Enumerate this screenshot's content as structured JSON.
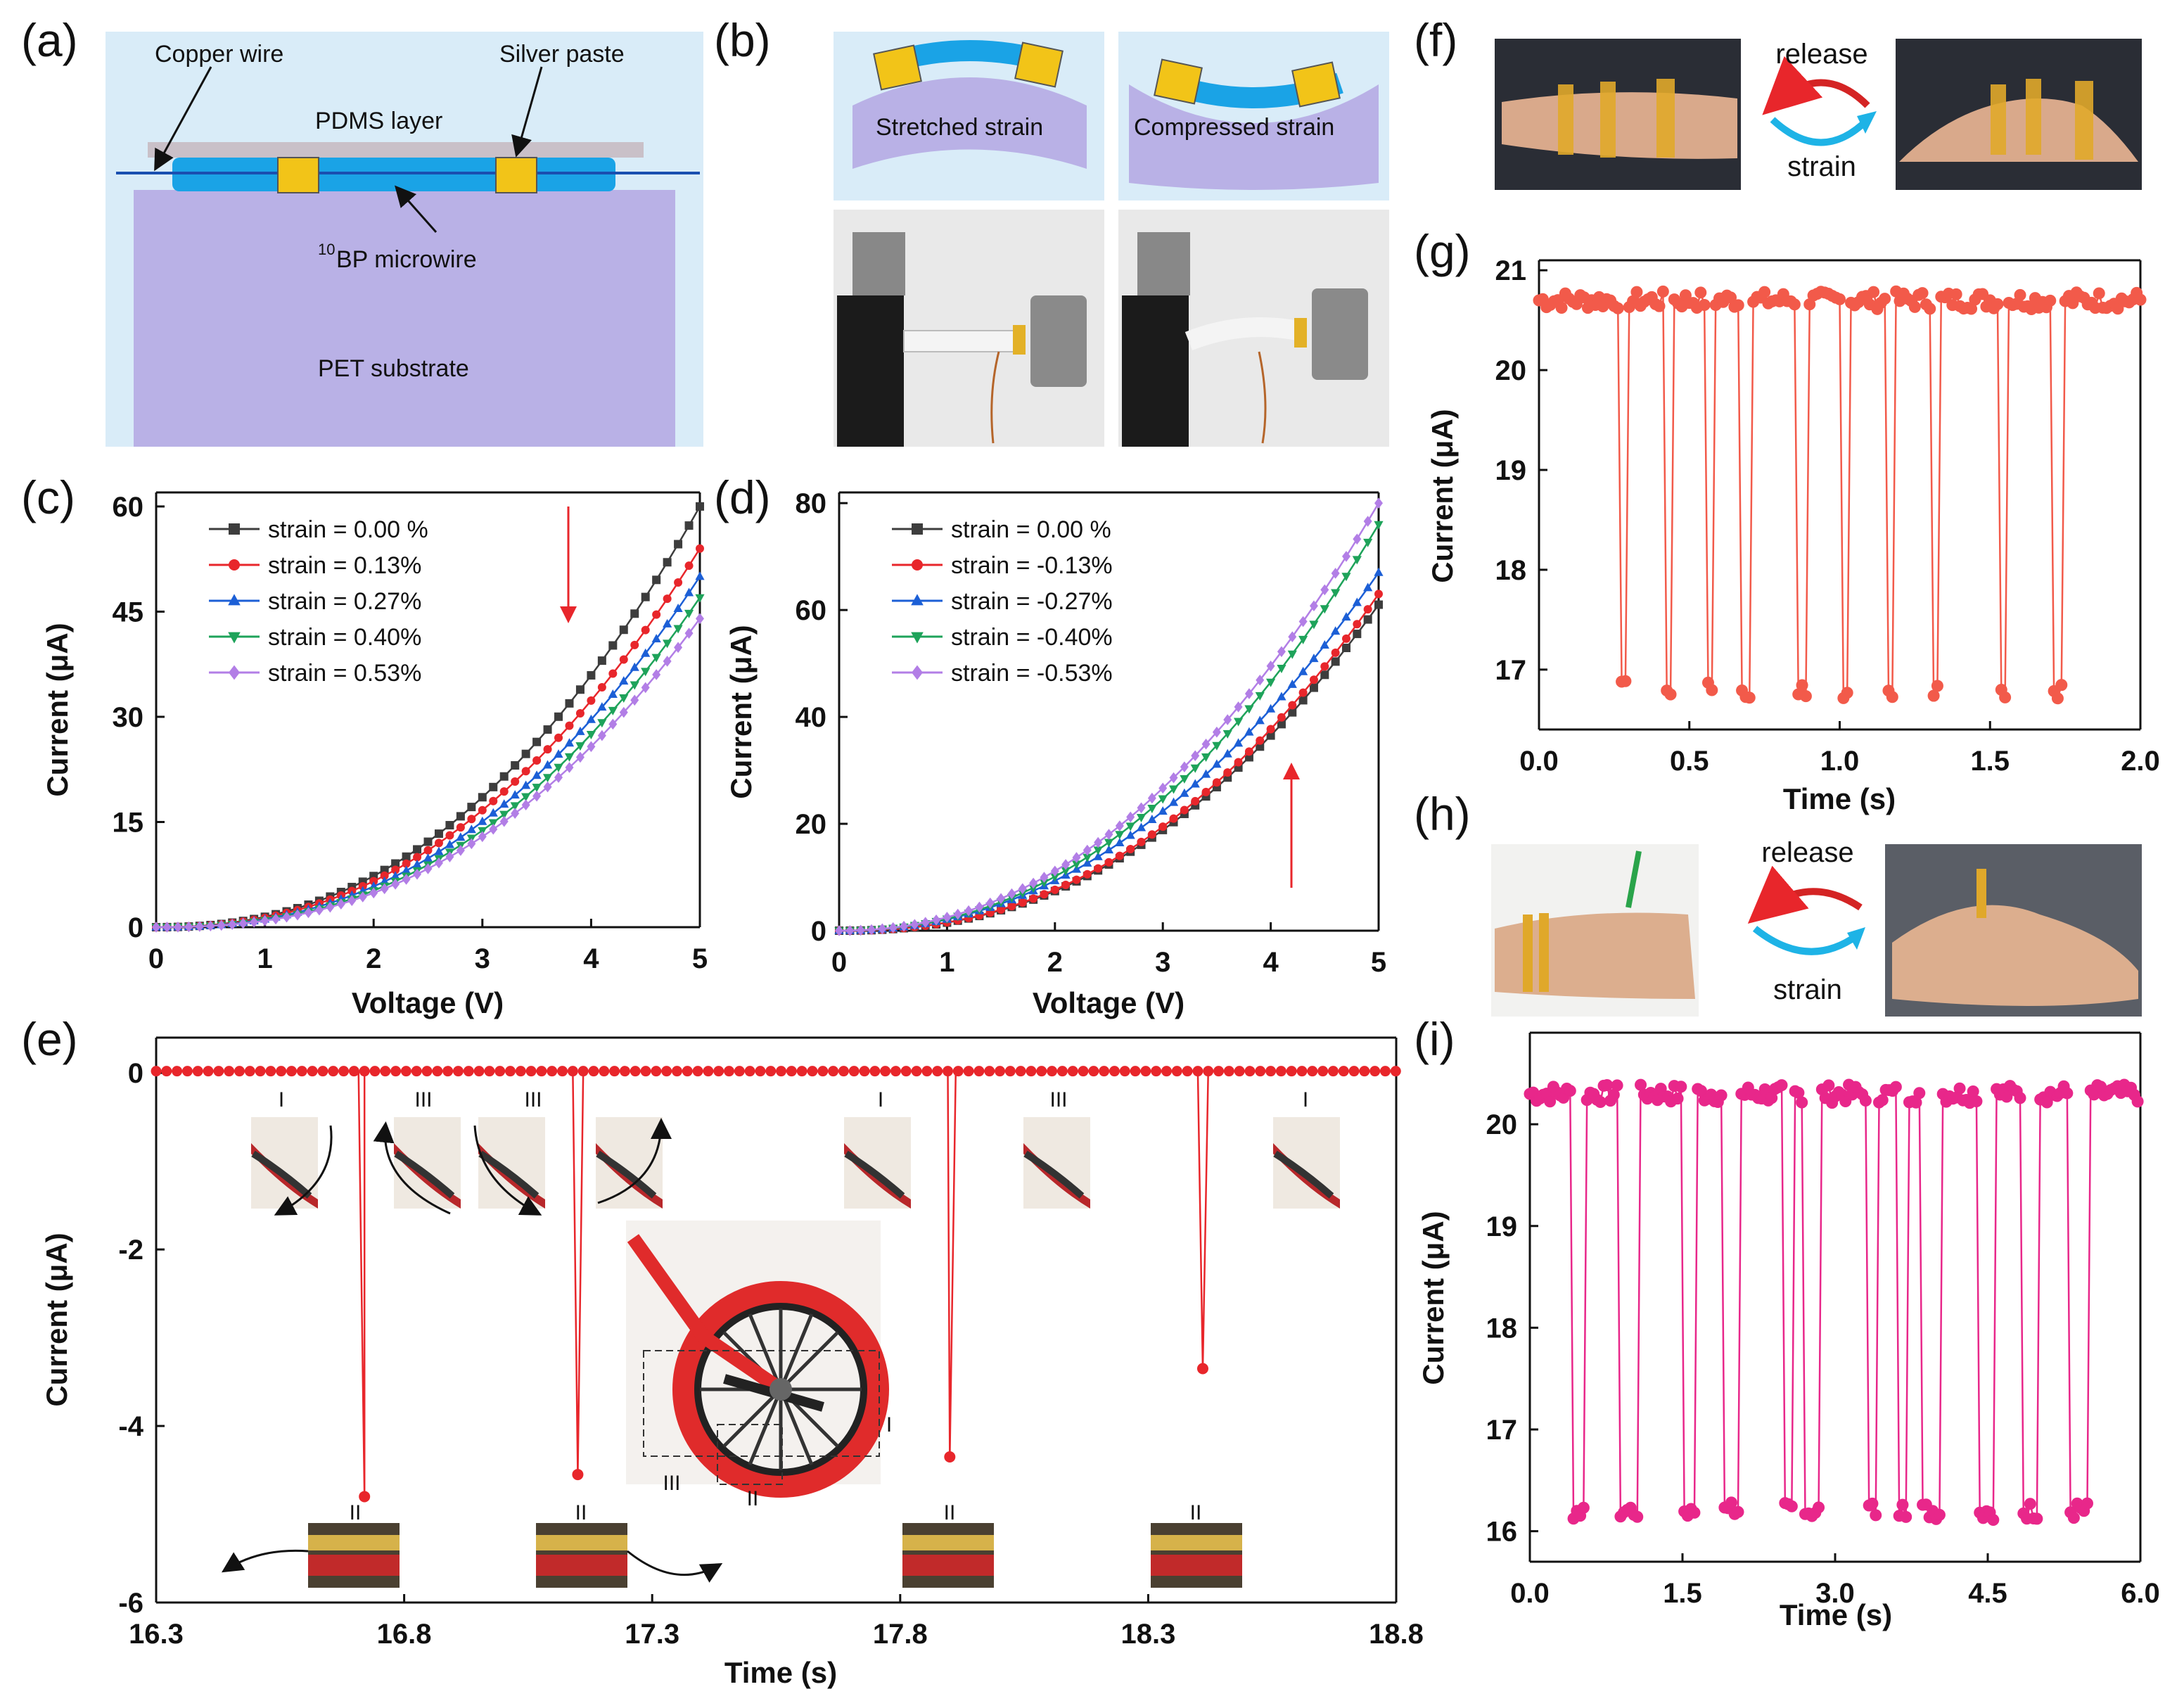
{
  "figure": {
    "panel_labels": [
      "(a)",
      "(b)",
      "(c)",
      "(d)",
      "(e)",
      "(f)",
      "(g)",
      "(h)",
      "(i)"
    ]
  },
  "panel_a": {
    "copper_wire": "Copper wire",
    "silver_paste": "Silver paste",
    "pdms_layer": "PDMS layer",
    "microwire_sup": "10",
    "microwire": "BP microwire",
    "substrate": "PET substrate"
  },
  "panel_b": {
    "stretched": "Stretched strain",
    "compressed": "Compressed strain"
  },
  "panel_f": {
    "release": "release",
    "strain": "strain"
  },
  "panel_h": {
    "release": "release",
    "strain": "strain"
  },
  "panel_e_annotations": {
    "stage_labels_top": [
      "I",
      "III",
      "III",
      "I",
      "III",
      "I"
    ],
    "stage_labels_bottom": [
      "II",
      "II",
      "II",
      "II"
    ],
    "inset_labels": [
      "I",
      "III",
      "II"
    ]
  },
  "colors": {
    "black": "#3d3d3d",
    "red": "#e8262b",
    "blue": "#1c5fd6",
    "green": "#1ea35a",
    "violet": "#b27ee6",
    "coral": "#f25a4a",
    "magenta": "#e8278a",
    "diagram_bg": "#d9ecf8",
    "pet": "#b9b1e6",
    "pdms": "#c9c0c8",
    "microwire": "#1aa3e6",
    "silver": "#f2c418"
  },
  "chart_data": [
    {
      "id": "c",
      "type": "line",
      "title": "",
      "xlabel": "Voltage (V)",
      "ylabel": "Current (μA)",
      "xlim": [
        0,
        5
      ],
      "ylim": [
        0,
        62
      ],
      "xticks": [
        0,
        1,
        2,
        3,
        4,
        5
      ],
      "yticks": [
        0,
        15,
        30,
        45,
        60
      ],
      "legend_position": "top-left",
      "annotation": "red down arrow",
      "series": [
        {
          "name": "strain = 0.00 %",
          "marker": "square",
          "color": "#3d3d3d",
          "peak": 60,
          "exponent": 2.3
        },
        {
          "name": "strain = 0.13%",
          "marker": "circle",
          "color": "#e8262b",
          "peak": 54,
          "exponent": 2.3
        },
        {
          "name": "strain = 0.27%",
          "marker": "triangle-up",
          "color": "#1c5fd6",
          "peak": 50,
          "exponent": 2.35
        },
        {
          "name": "strain = 0.40%",
          "marker": "triangle-down",
          "color": "#1ea35a",
          "peak": 47,
          "exponent": 2.4
        },
        {
          "name": "strain = 0.53%",
          "marker": "diamond",
          "color": "#b27ee6",
          "peak": 44,
          "exponent": 2.4
        }
      ]
    },
    {
      "id": "d",
      "type": "line",
      "title": "",
      "xlabel": "Voltage (V)",
      "ylabel": "Current (μA)",
      "xlim": [
        0,
        5
      ],
      "ylim": [
        0,
        82
      ],
      "xticks": [
        0,
        1,
        2,
        3,
        4,
        5
      ],
      "yticks": [
        0,
        20,
        40,
        60,
        80
      ],
      "legend_position": "top-left",
      "annotation": "red up arrow",
      "series": [
        {
          "name": "strain = 0.00 %",
          "marker": "square",
          "color": "#3d3d3d",
          "peak": 61,
          "exponent": 2.3
        },
        {
          "name": "strain = -0.13%",
          "marker": "circle",
          "color": "#e8262b",
          "peak": 63,
          "exponent": 2.3
        },
        {
          "name": "strain = -0.27%",
          "marker": "triangle-up",
          "color": "#1c5fd6",
          "peak": 67,
          "exponent": 2.15
        },
        {
          "name": "strain = -0.40%",
          "marker": "triangle-down",
          "color": "#1ea35a",
          "peak": 76,
          "exponent": 2.2
        },
        {
          "name": "strain = -0.53%",
          "marker": "diamond",
          "color": "#b27ee6",
          "peak": 80,
          "exponent": 2.15
        }
      ]
    },
    {
      "id": "e",
      "type": "line",
      "xlabel": "Time (s)",
      "ylabel": "Current (μA)",
      "xlim": [
        16.3,
        18.8
      ],
      "ylim": [
        -6,
        0.4
      ],
      "xticks": [
        16.3,
        16.8,
        17.3,
        17.8,
        18.3,
        18.8
      ],
      "yticks": [
        -6,
        -4,
        -2,
        0
      ],
      "baseline": 0.02,
      "spikes": [
        {
          "t": 16.72,
          "min": -4.8
        },
        {
          "t": 17.15,
          "min": -4.55
        },
        {
          "t": 17.9,
          "min": -4.35
        },
        {
          "t": 18.41,
          "min": -3.35
        }
      ]
    },
    {
      "id": "g",
      "type": "line",
      "xlabel": "Time (s)",
      "ylabel": "Current (μA)",
      "xlim": [
        0.0,
        2.0
      ],
      "ylim": [
        16.4,
        21.1
      ],
      "xticks": [
        0.0,
        0.5,
        1.0,
        1.5,
        2.0
      ],
      "yticks": [
        17,
        18,
        19,
        20,
        21
      ],
      "high": 20.7,
      "low": 16.8,
      "dips": [
        [
          0.27,
          0.3
        ],
        [
          0.42,
          0.45
        ],
        [
          0.56,
          0.58
        ],
        [
          0.67,
          0.7
        ],
        [
          0.86,
          0.89
        ],
        [
          1.0,
          1.03
        ],
        [
          1.15,
          1.18
        ],
        [
          1.3,
          1.33
        ],
        [
          1.53,
          1.56
        ],
        [
          1.71,
          1.74
        ]
      ]
    },
    {
      "id": "i",
      "type": "line",
      "xlabel": "Time (s)",
      "ylabel": "Current (μA)",
      "xlim": [
        0.0,
        6.0
      ],
      "ylim": [
        15.7,
        20.9
      ],
      "xticks": [
        0.0,
        1.5,
        3.0,
        4.5,
        6.0
      ],
      "yticks": [
        16,
        17,
        18,
        19,
        20
      ],
      "high": 20.3,
      "low": 16.2,
      "dips": [
        [
          0.4,
          0.56
        ],
        [
          0.88,
          1.07
        ],
        [
          1.5,
          1.62
        ],
        [
          1.9,
          2.07
        ],
        [
          2.5,
          2.6
        ],
        [
          2.7,
          2.85
        ],
        [
          3.3,
          3.4
        ],
        [
          3.6,
          3.72
        ],
        [
          3.85,
          4.03
        ],
        [
          4.4,
          4.58
        ],
        [
          4.85,
          4.99
        ],
        [
          5.3,
          5.48
        ]
      ]
    }
  ]
}
